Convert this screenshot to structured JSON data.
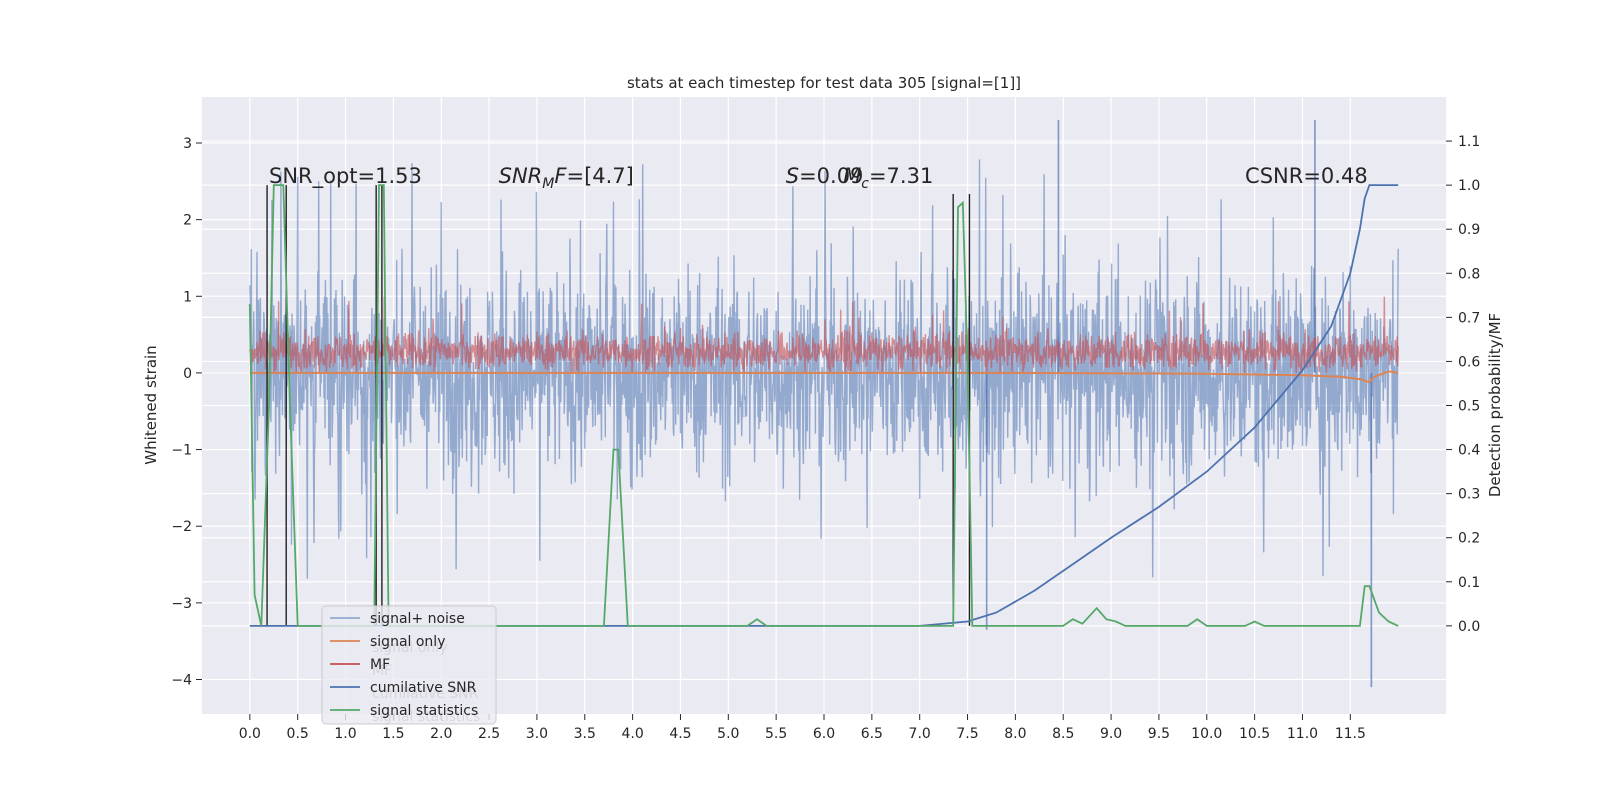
{
  "chart_data": {
    "type": "line",
    "title": "stats at each timestep for test data 305 [signal=[1]]",
    "ylabel": "Whitened strain",
    "y2label": "Detection probability/MF",
    "xlim": [
      -0.5,
      12.5
    ],
    "ylim": [
      -4.45,
      3.6
    ],
    "y2lim": [
      -0.2,
      1.2
    ],
    "x_ticks": [
      "0.0",
      "0.5",
      "1.0",
      "1.5",
      "2.0",
      "2.5",
      "3.0",
      "3.5",
      "4.0",
      "4.5",
      "5.0",
      "5.5",
      "6.0",
      "6.5",
      "7.0",
      "7.5",
      "8.0",
      "8.5",
      "9.0",
      "9.5",
      "10.0",
      "10.5",
      "11.0",
      "11.5"
    ],
    "y_ticks": [
      "3",
      "2",
      "1",
      "0",
      "−1",
      "−2",
      "−3",
      "−4"
    ],
    "y2_ticks": [
      "1.1",
      "1.0",
      "0.9",
      "0.8",
      "0.7",
      "0.6",
      "0.5",
      "0.4",
      "0.3",
      "0.2",
      "0.1",
      "0.0"
    ],
    "grid": true,
    "legend_position": "lower-left",
    "annotations": [
      {
        "text": "SNR_opt=1.53",
        "x": 0.2
      },
      {
        "text": "SNR_MF=[4.7]",
        "x": 2.6
      },
      {
        "text": "S=0.09",
        "x": 5.6
      },
      {
        "text": "M_c=7.31",
        "x": 6.2
      },
      {
        "text": "CSNR=0.48",
        "x": 10.4
      }
    ],
    "series": [
      {
        "name": "signal+ noise",
        "axis": "left",
        "color": "#4c72b0",
        "opacity": 0.55,
        "description_of_data": "noisy whitened strain, approx. range -2.6 to 2.6 with spikes to 3.3 and -4.1",
        "envelope": {
          "x": [
            0,
            12
          ],
          "low": -2.1,
          "high": 2.0,
          "peak_high": 3.3,
          "peak_low": -4.1
        }
      },
      {
        "name": "signal only",
        "axis": "left",
        "color": "#dd8452",
        "x": [
          0,
          8,
          10,
          11,
          11.4,
          11.6,
          11.7,
          11.75,
          11.9,
          12.0
        ],
        "y": [
          0,
          0,
          -0.01,
          -0.03,
          -0.05,
          -0.08,
          -0.12,
          -0.05,
          0.02,
          0
        ]
      },
      {
        "name": "MF",
        "axis": "left",
        "color": "#c44e52",
        "description_of_data": "matched filter output, approx. range 0 to 0.6 with peaks near 1.0",
        "envelope": {
          "x": [
            0,
            12
          ],
          "low": 0.0,
          "high": 0.55,
          "peak_high": 1.0
        }
      },
      {
        "name": "cumilative SNR",
        "axis": "right",
        "color": "#4c72b0",
        "x": [
          0,
          7.0,
          7.5,
          7.8,
          8.2,
          8.6,
          9.0,
          9.5,
          10.0,
          10.5,
          11.0,
          11.3,
          11.5,
          11.6,
          11.65,
          11.7,
          12.0
        ],
        "y": [
          0.0,
          0.0,
          0.01,
          0.03,
          0.08,
          0.14,
          0.2,
          0.27,
          0.35,
          0.45,
          0.58,
          0.68,
          0.8,
          0.9,
          0.97,
          1.0,
          1.0
        ]
      },
      {
        "name": "signal statistics",
        "axis": "right",
        "color": "#55a868",
        "x": [
          0.0,
          0.05,
          0.12,
          0.2,
          0.25,
          0.3,
          0.35,
          0.42,
          0.5,
          0.55,
          1.3,
          1.35,
          1.4,
          1.45,
          3.7,
          3.8,
          3.85,
          3.95,
          4.0,
          5.2,
          5.3,
          5.4,
          7.35,
          7.4,
          7.45,
          7.5,
          7.55,
          7.6,
          7.65,
          8.5,
          8.6,
          8.7,
          8.85,
          8.95,
          9.05,
          9.15,
          9.8,
          9.9,
          10.0,
          10.4,
          10.5,
          10.6,
          11.6,
          11.65,
          11.7,
          11.8,
          11.9,
          12.0
        ],
        "y": [
          0.73,
          0.07,
          0.0,
          0.5,
          1.0,
          1.0,
          1.0,
          0.5,
          0.0,
          0.0,
          0.0,
          1.0,
          1.0,
          0.0,
          0.0,
          0.4,
          0.4,
          0.0,
          0.0,
          0.0,
          0.015,
          0.0,
          0.0,
          0.95,
          0.96,
          0.6,
          0.0,
          0.0,
          0.0,
          0.0,
          0.015,
          0.005,
          0.04,
          0.015,
          0.01,
          0.0,
          0.0,
          0.015,
          0.0,
          0.0,
          0.01,
          0.0,
          0.0,
          0.09,
          0.09,
          0.03,
          0.01,
          0.0
        ]
      },
      {
        "name": "black verticals",
        "axis": "right",
        "color": "#222222",
        "x": [
          0.18,
          0.38,
          1.32,
          1.38,
          7.35,
          7.52
        ],
        "y": [
          1.0,
          1.0,
          1.0,
          1.0,
          0.98,
          0.98
        ]
      }
    ],
    "legend_entries": [
      {
        "label": "signal+ noise",
        "color": "#4c72b0",
        "opacity": 0.55
      },
      {
        "label": "signal only",
        "color": "#dd8452"
      },
      {
        "label": "MF",
        "color": "#c44e52"
      },
      {
        "label": "cumilative SNR",
        "color": "#4c72b0"
      },
      {
        "label": "signal statistics",
        "color": "#55a868"
      }
    ],
    "legend_ghost_texts": [
      "signal+ noise",
      "signal only",
      "MF",
      "cumilative SNR",
      "signal statistics"
    ],
    "colors": {
      "plot_bg": "#eaeaf2",
      "grid": "#ffffff"
    }
  }
}
